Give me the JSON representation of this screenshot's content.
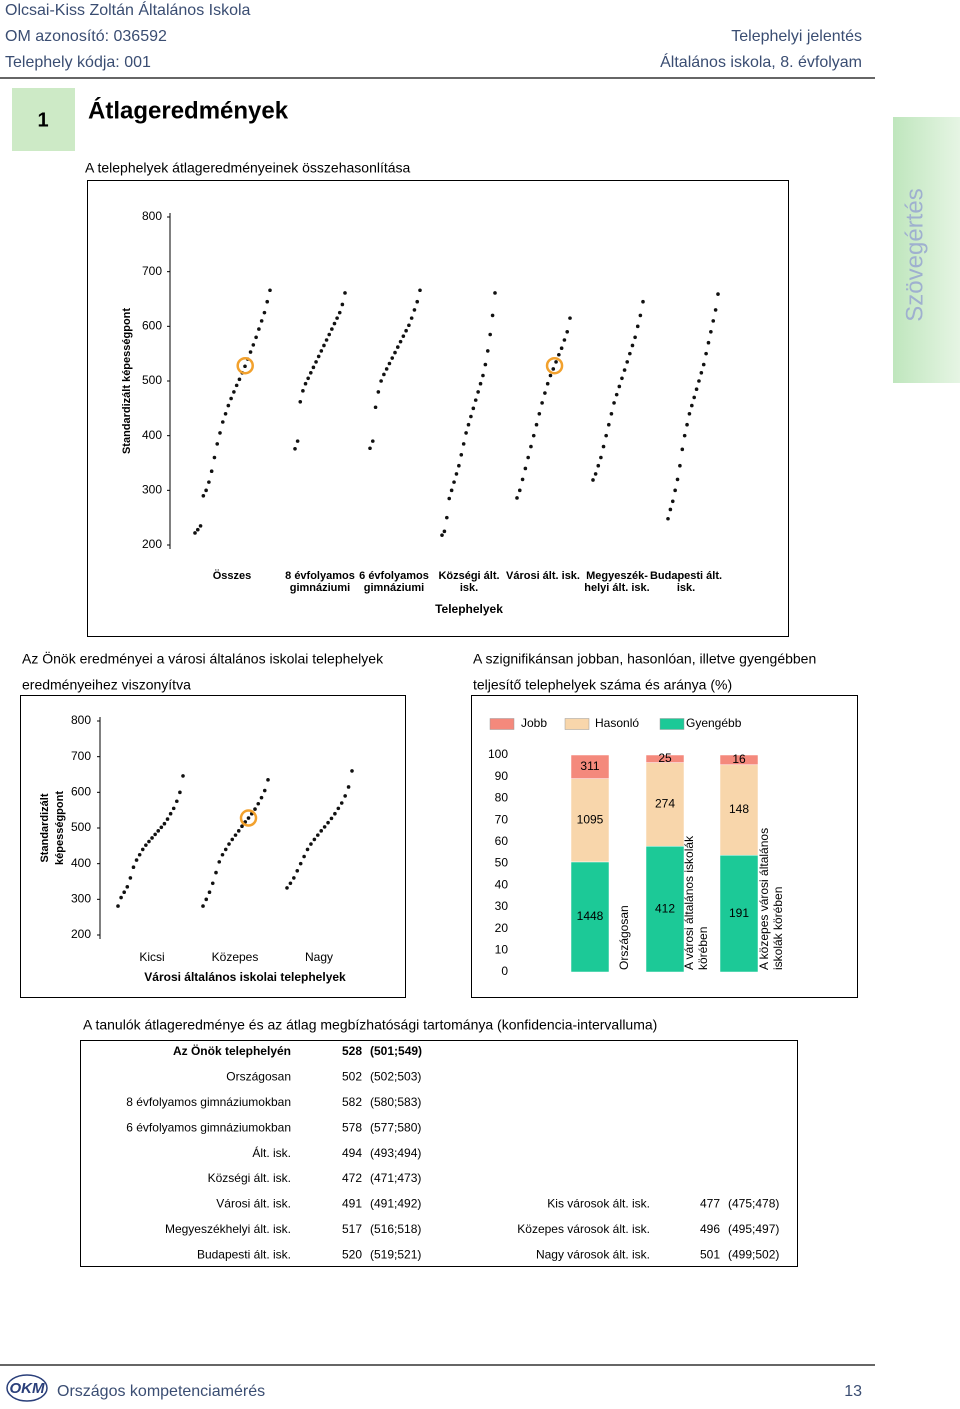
{
  "header": {
    "school": "Olcsai-Kiss Zoltán Általános Iskola",
    "om": "OM azonosító: 036592",
    "site_code": "Telephely kódja: 001",
    "report": "Telephelyi jelentés",
    "grade": "Általános iskola, 8. évfolyam"
  },
  "section": {
    "number": "1",
    "title": "Átlageredmények",
    "tab": "Szövegértés"
  },
  "chart_data": [
    {
      "type": "strip",
      "title": "A telephelyek átlageredményeinek összehasonlítása",
      "ylabel": [
        "Standardizált képességpont"
      ],
      "xlabel": "Telephelyek",
      "ylim": [
        200,
        800
      ],
      "yticks": [
        200,
        300,
        400,
        500,
        600,
        700,
        800
      ],
      "groups": [
        {
          "label": [
            "Összes"
          ],
          "highlight": 528,
          "values": [
            222,
            228,
            235,
            290,
            300,
            315,
            335,
            360,
            385,
            405,
            425,
            440,
            455,
            468,
            480,
            492,
            503,
            515,
            527,
            540,
            553,
            566,
            580,
            595,
            610,
            625,
            645,
            666
          ]
        },
        {
          "label": [
            "8 évfolyamos",
            "gimnáziumi"
          ],
          "values": [
            376,
            390,
            462,
            482,
            495,
            505,
            515,
            525,
            535,
            545,
            555,
            565,
            575,
            585,
            595,
            605,
            615,
            625,
            640,
            661
          ]
        },
        {
          "label": [
            "6 évfolyamos",
            "gimnáziumi"
          ],
          "values": [
            377,
            390,
            452,
            480,
            500,
            512,
            522,
            532,
            542,
            552,
            562,
            572,
            582,
            592,
            602,
            615,
            630,
            645,
            666
          ]
        },
        {
          "label": [
            "Községi ált.",
            "isk."
          ],
          "values": [
            218,
            225,
            250,
            285,
            300,
            315,
            330,
            345,
            365,
            385,
            405,
            420,
            435,
            450,
            465,
            480,
            495,
            510,
            530,
            555,
            585,
            620,
            661
          ]
        },
        {
          "label": [
            "Városi ált. isk."
          ],
          "highlight": 528,
          "values": [
            286,
            300,
            320,
            340,
            360,
            380,
            400,
            420,
            440,
            460,
            478,
            495,
            510,
            522,
            535,
            548,
            560,
            575,
            590,
            615
          ]
        },
        {
          "label": [
            "Megyeszék-",
            "helyi ált. isk."
          ],
          "values": [
            319,
            330,
            345,
            360,
            380,
            400,
            420,
            440,
            460,
            475,
            490,
            505,
            520,
            535,
            550,
            565,
            580,
            600,
            620,
            645
          ]
        },
        {
          "label": [
            "Budapesti ált.",
            "isk."
          ],
          "values": [
            248,
            265,
            280,
            300,
            320,
            345,
            375,
            400,
            420,
            440,
            455,
            470,
            485,
            500,
            515,
            530,
            550,
            570,
            590,
            610,
            630,
            659
          ]
        }
      ]
    },
    {
      "type": "strip",
      "title": [
        "Az Önök eredményei a városi általános iskolai telephelyek",
        "eredményeihez viszonyítva"
      ],
      "ylabel": [
        "Standardizált",
        "képességpont"
      ],
      "xlabel": "Városi általános iskolai telephelyek",
      "ylim": [
        200,
        800
      ],
      "yticks": [
        200,
        300,
        400,
        500,
        600,
        700,
        800
      ],
      "groups": [
        {
          "label": [
            "Kicsi"
          ],
          "values": [
            281,
            305,
            320,
            335,
            360,
            390,
            410,
            425,
            440,
            452,
            462,
            472,
            482,
            492,
            502,
            512,
            525,
            540,
            555,
            575,
            600,
            646
          ]
        },
        {
          "label": [
            "Közepes"
          ],
          "highlight": 528,
          "values": [
            281,
            300,
            320,
            345,
            375,
            405,
            425,
            440,
            455,
            468,
            480,
            492,
            505,
            517,
            528,
            540,
            553,
            568,
            585,
            605,
            635
          ]
        },
        {
          "label": [
            "Nagy"
          ],
          "values": [
            332,
            345,
            360,
            380,
            400,
            420,
            440,
            455,
            468,
            480,
            492,
            503,
            515,
            527,
            540,
            555,
            570,
            590,
            615,
            660
          ]
        }
      ]
    },
    {
      "type": "stacked_bar",
      "stacking": "percent",
      "title": [
        "A szignifikánsan jobban, hasonlóan, illetve gyengébben",
        "teljesítő telephelyek száma és aránya (%)"
      ],
      "ylim": [
        0,
        100
      ],
      "yticks": [
        0,
        10,
        20,
        30,
        40,
        50,
        60,
        70,
        80,
        90,
        100
      ],
      "categories": [
        [
          "Országosan"
        ],
        [
          "A városi általános iskolák",
          "körében"
        ],
        [
          "A közepes városi általános",
          "iskolák körében"
        ]
      ],
      "series": [
        {
          "name": "Jobb",
          "color": "#f4897c",
          "values": [
            311,
            25,
            16
          ]
        },
        {
          "name": "Hasonló",
          "color": "#f8d6ab",
          "values": [
            1095,
            274,
            148
          ]
        },
        {
          "name": "Gyengébb",
          "color": "#1cc997",
          "values": [
            1448,
            412,
            191
          ]
        }
      ]
    }
  ],
  "table": {
    "caption": "A tanulók átlageredménye és az átlag megbízhatósági tartománya (konfidencia-intervalluma)",
    "rows": [
      [
        "Az Önök telephelyén",
        528,
        "(501;549)"
      ],
      [
        "Országosan",
        502,
        "(502;503)"
      ],
      [
        "8 évfolyamos gimnáziumokban",
        582,
        "(580;583)"
      ],
      [
        "6 évfolyamos gimnáziumokban",
        578,
        "(577;580)"
      ],
      [
        "Ált. isk.",
        494,
        "(493;494)"
      ],
      [
        "Községi ált. isk.",
        472,
        "(471;473)"
      ],
      [
        "Városi ált. isk.",
        491,
        "(491;492)",
        "Kis városok ált. isk.",
        477,
        "(475;478)"
      ],
      [
        "Megyeszékhelyi ált. isk.",
        517,
        "(516;518)",
        "Közepes városok ált. isk.",
        496,
        "(495;497)"
      ],
      [
        "Budapesti ált. isk.",
        520,
        "(519;521)",
        "Nagy városok ált. isk.",
        501,
        "(499;502)"
      ]
    ]
  },
  "footer": {
    "org": "Országos kompetenciamérés",
    "page": "13"
  }
}
